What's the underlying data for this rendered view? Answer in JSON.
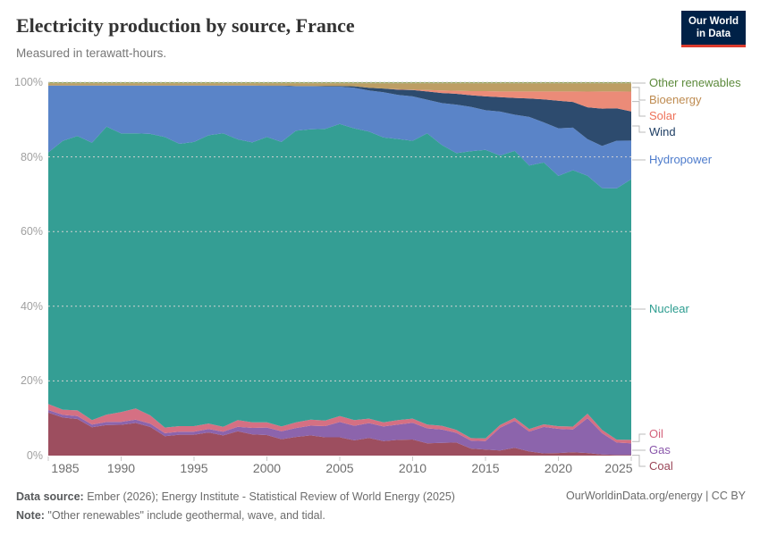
{
  "header": {
    "title": "Electricity production by source, France",
    "subtitle": "Measured in terawatt-hours.",
    "logo": {
      "line1": "Our World",
      "line2": "in Data",
      "bg": "#002147",
      "accent": "#dc3b2e"
    }
  },
  "chart_data": {
    "type": "area",
    "stacked": true,
    "relative": true,
    "title": "Electricity production by source, France",
    "subtitle": "Measured in terawatt-hours.",
    "xlabel": "",
    "ylabel": "",
    "ylim": [
      0,
      100
    ],
    "grid": true,
    "legend_position": "right-edge-labels",
    "yticks": [
      "0%",
      "20%",
      "40%",
      "60%",
      "80%",
      "100%"
    ],
    "xticks": [
      1985,
      1990,
      1995,
      2000,
      2005,
      2010,
      2015,
      2020,
      2025
    ],
    "x": [
      1985,
      1986,
      1987,
      1988,
      1989,
      1990,
      1991,
      1992,
      1993,
      1994,
      1995,
      1996,
      1997,
      1998,
      1999,
      2000,
      2001,
      2002,
      2003,
      2004,
      2005,
      2006,
      2007,
      2008,
      2009,
      2010,
      2011,
      2012,
      2013,
      2014,
      2015,
      2016,
      2017,
      2018,
      2019,
      2020,
      2021,
      2022,
      2023,
      2024,
      2025
    ],
    "series": [
      {
        "name": "Coal",
        "color": "#9D4E5F",
        "label_color": "#9A4557",
        "values": [
          11.5,
          10.2,
          9.8,
          7.6,
          8.2,
          8.3,
          8.8,
          7.7,
          5.2,
          5.6,
          5.6,
          6.2,
          5.4,
          6.5,
          5.7,
          5.5,
          4.4,
          5.0,
          5.4,
          4.9,
          4.9,
          4.1,
          4.7,
          3.9,
          4.2,
          4.3,
          3.3,
          3.4,
          3.5,
          1.9,
          1.6,
          1.4,
          2.1,
          1.1,
          0.6,
          0.7,
          0.9,
          0.7,
          0.3,
          0.2,
          0.2
        ]
      },
      {
        "name": "Gas",
        "color": "#8C64AC",
        "label_color": "#8A57AB",
        "values": [
          0.7,
          0.7,
          0.8,
          0.7,
          0.8,
          0.8,
          0.9,
          0.9,
          0.8,
          0.8,
          0.8,
          0.9,
          1.0,
          1.2,
          1.7,
          2.0,
          2.1,
          2.4,
          2.6,
          3.0,
          4.1,
          3.9,
          4.0,
          3.9,
          4.1,
          4.5,
          4.0,
          3.6,
          2.6,
          2.1,
          2.3,
          6.1,
          7.2,
          5.4,
          7.1,
          6.5,
          6.1,
          9.3,
          5.7,
          3.3,
          3.1
        ]
      },
      {
        "name": "Oil",
        "color": "#D57083",
        "label_color": "#D4627B",
        "values": [
          1.6,
          1.4,
          1.5,
          1.2,
          2.0,
          2.6,
          3.0,
          2.2,
          1.5,
          1.5,
          1.5,
          1.5,
          1.3,
          1.8,
          1.5,
          1.4,
          1.3,
          1.5,
          1.6,
          1.5,
          1.6,
          1.5,
          1.2,
          1.1,
          1.2,
          1.1,
          1.0,
          1.0,
          0.8,
          0.7,
          0.7,
          0.7,
          0.8,
          0.7,
          0.7,
          0.7,
          0.8,
          1.2,
          0.9,
          0.8,
          0.9
        ]
      },
      {
        "name": "Nuclear",
        "color": "#349E94",
        "label_color": "#2B9C8F",
        "values": [
          67.4,
          72.0,
          73.5,
          74.3,
          77.2,
          75.0,
          74.2,
          75.6,
          77.8,
          75.6,
          76.1,
          77.2,
          78.6,
          75.2,
          74.9,
          76.4,
          76.2,
          78.1,
          77.7,
          78.1,
          78.3,
          78.1,
          76.8,
          76.2,
          75.2,
          74.4,
          78.0,
          75.2,
          74.1,
          76.8,
          77.3,
          72.4,
          71.5,
          71.2,
          70.4,
          67.3,
          68.8,
          63.6,
          64.8,
          67.4,
          69.6
        ]
      },
      {
        "name": "Hydropower",
        "color": "#5A84C8",
        "label_color": "#4E7CCC",
        "values": [
          17.9,
          14.8,
          13.5,
          15.3,
          11.0,
          12.9,
          12.9,
          13.0,
          13.8,
          15.6,
          15.1,
          13.3,
          12.8,
          14.4,
          15.2,
          13.7,
          15.0,
          11.9,
          11.5,
          11.3,
          10.0,
          10.9,
          11.0,
          12.1,
          11.8,
          11.9,
          9.0,
          11.2,
          13.0,
          11.9,
          10.6,
          11.8,
          9.7,
          13.1,
          10.8,
          12.8,
          11.4,
          9.8,
          11.3,
          12.8,
          10.3
        ]
      },
      {
        "name": "Wind",
        "color": "#2D4B6E",
        "label_color": "#1D3D63",
        "values": [
          0,
          0,
          0,
          0,
          0,
          0,
          0,
          0,
          0,
          0,
          0,
          0,
          0,
          0,
          0,
          0.1,
          0.1,
          0.1,
          0.1,
          0.2,
          0.2,
          0.4,
          0.7,
          1.0,
          1.4,
          1.7,
          2.2,
          2.7,
          2.9,
          3.1,
          3.7,
          3.9,
          4.5,
          5.0,
          6.2,
          7.4,
          6.9,
          8.5,
          10.0,
          8.7,
          7.8
        ]
      },
      {
        "name": "Solar",
        "color": "#EB8B78",
        "label_color": "#EE7159",
        "values": [
          0,
          0,
          0,
          0,
          0,
          0,
          0,
          0,
          0,
          0,
          0,
          0,
          0,
          0,
          0,
          0,
          0,
          0,
          0,
          0,
          0,
          0,
          0,
          0,
          0.1,
          0.1,
          0.4,
          0.7,
          0.8,
          1.1,
          1.4,
          1.5,
          1.7,
          1.9,
          2.1,
          2.5,
          2.8,
          4.2,
          4.6,
          4.5,
          5.3
        ]
      },
      {
        "name": "Bioenergy",
        "color": "#BD9E64",
        "label_color": "#BE8B50",
        "values": [
          0.6,
          0.6,
          0.6,
          0.6,
          0.6,
          0.6,
          0.6,
          0.6,
          0.6,
          0.6,
          0.6,
          0.6,
          0.6,
          0.6,
          0.6,
          0.6,
          0.6,
          0.7,
          0.7,
          0.7,
          0.7,
          0.8,
          1.2,
          1.4,
          1.6,
          1.7,
          1.8,
          1.9,
          2.0,
          2.1,
          2.1,
          2.2,
          2.2,
          2.2,
          2.2,
          2.2,
          2.2,
          2.2,
          2.2,
          2.2,
          2.2
        ]
      },
      {
        "name": "Other renewables",
        "color": "#93A15D",
        "label_color": "#5C8A3B",
        "values": [
          0.3,
          0.3,
          0.3,
          0.3,
          0.3,
          0.3,
          0.3,
          0.3,
          0.3,
          0.3,
          0.3,
          0.3,
          0.3,
          0.3,
          0.3,
          0.3,
          0.3,
          0.3,
          0.3,
          0.3,
          0.3,
          0.3,
          0.3,
          0.3,
          0.3,
          0.3,
          0.3,
          0.3,
          0.3,
          0.3,
          0.3,
          0.3,
          0.3,
          0.3,
          0.3,
          0.3,
          0.3,
          0.3,
          0.3,
          0.3,
          0.3
        ]
      }
    ]
  },
  "footer": {
    "datasource_label": "Data source:",
    "datasource_text": " Ember (2026); Energy Institute - Statistical Review of World Energy (2025)",
    "note_label": "Note:",
    "note_text": " \"Other renewables\" include geothermal, wave, and tidal.",
    "link": "OurWorldinData.org/energy | CC BY"
  }
}
